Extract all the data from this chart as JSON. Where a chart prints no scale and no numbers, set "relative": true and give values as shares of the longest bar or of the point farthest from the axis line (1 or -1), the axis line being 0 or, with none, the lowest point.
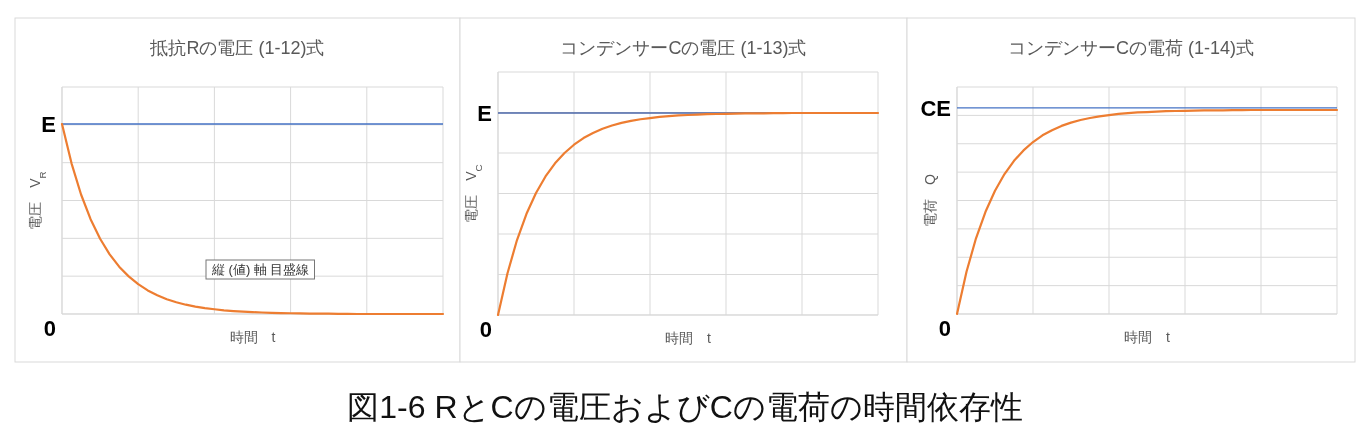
{
  "chart_data": [
    {
      "type": "line",
      "title": "抵抗Rの電圧 (1-12)式",
      "xlabel": "時間　t",
      "ylabel": "電圧　V$_{R}$",
      "relative": true,
      "categories": [
        null,
        null,
        null,
        null,
        null,
        null,
        null,
        null,
        null,
        null,
        null,
        null,
        null,
        null,
        null,
        null,
        null,
        null,
        null,
        null,
        null,
        null,
        null,
        null,
        null,
        null,
        null,
        null,
        null,
        null,
        null,
        null,
        null,
        null,
        null,
        null,
        null,
        null,
        null,
        null,
        null
      ],
      "series": [
        {
          "color": "#ed7d31",
          "values": [
            1,
            0.793,
            0.629,
            0.499,
            0.396,
            0.314,
            0.249,
            0.198,
            0.157,
            0.124,
            0.099,
            0.078,
            0.062,
            0.049,
            0.039,
            0.031,
            0.025,
            0.019,
            0.015,
            0.012,
            0.01,
            0.008,
            0.006,
            0.005,
            0.004,
            0.003,
            0.002,
            0.002,
            0.002,
            0.001,
            0.001,
            0,
            0,
            0,
            0,
            0,
            0,
            0,
            0,
            0,
            0
          ]
        }
      ],
      "ref_lines": [
        {
          "axis": "y",
          "value": 1,
          "label": "E",
          "color": "#4472c4"
        }
      ],
      "annotations": [
        "0",
        "縦 (値) 軸 目盛線"
      ],
      "grid": true,
      "marker": "none",
      "line_style": "solid"
    },
    {
      "type": "line",
      "title": "コンデンサーCの電圧 (1-13)式",
      "xlabel": "時間　t",
      "ylabel": "電圧　V$_{C}$",
      "relative": true,
      "categories": [
        null,
        null,
        null,
        null,
        null,
        null,
        null,
        null,
        null,
        null,
        null,
        null,
        null,
        null,
        null,
        null,
        null,
        null,
        null,
        null,
        null,
        null,
        null,
        null,
        null,
        null,
        null,
        null,
        null,
        null,
        null,
        null,
        null,
        null,
        null,
        null,
        null,
        null,
        null,
        null,
        null
      ],
      "series": [
        {
          "color": "#ed7d31",
          "values": [
            0,
            0.207,
            0.371,
            0.501,
            0.604,
            0.686,
            0.751,
            0.802,
            0.843,
            0.876,
            0.901,
            0.922,
            0.938,
            0.951,
            0.961,
            0.969,
            0.975,
            0.981,
            0.985,
            0.988,
            0.99,
            0.992,
            0.994,
            0.995,
            0.996,
            0.997,
            0.998,
            0.998,
            0.998,
            0.999,
            0.999,
            1,
            1,
            1,
            1,
            1,
            1,
            1,
            1,
            1,
            1
          ]
        }
      ],
      "ref_lines": [
        {
          "axis": "y",
          "value": 1,
          "label": "E",
          "color": "#4a66a8"
        }
      ],
      "annotations": [
        "0"
      ],
      "grid": true,
      "marker": "none",
      "line_style": "solid"
    },
    {
      "type": "line",
      "title": "コンデンサーCの電荷 (1-14)式",
      "xlabel": "時間　t",
      "ylabel": "電荷　Q",
      "relative": true,
      "categories": [
        null,
        null,
        null,
        null,
        null,
        null,
        null,
        null,
        null,
        null,
        null,
        null,
        null,
        null,
        null,
        null,
        null,
        null,
        null,
        null,
        null,
        null,
        null,
        null,
        null,
        null,
        null,
        null,
        null,
        null,
        null,
        null,
        null,
        null,
        null,
        null,
        null,
        null,
        null,
        null,
        null
      ],
      "series": [
        {
          "color": "#ed7d31",
          "values": [
            0,
            0.207,
            0.371,
            0.501,
            0.604,
            0.686,
            0.751,
            0.802,
            0.843,
            0.876,
            0.901,
            0.922,
            0.938,
            0.951,
            0.961,
            0.969,
            0.975,
            0.981,
            0.985,
            0.988,
            0.99,
            0.992,
            0.994,
            0.995,
            0.996,
            0.997,
            0.998,
            0.998,
            0.998,
            0.999,
            0.999,
            1,
            1,
            1,
            1,
            1,
            1,
            1,
            1,
            1,
            1
          ]
        }
      ],
      "ref_lines": [
        {
          "axis": "y",
          "value": 1.01,
          "label": "CE",
          "color": "#4472c4"
        }
      ],
      "annotations": [
        "0"
      ],
      "grid": true,
      "marker": "none",
      "line_style": "solid"
    },
    {
      "type": "other",
      "title": "図1-6 RとCの電圧およびCの電荷の時間依存性"
    }
  ]
}
